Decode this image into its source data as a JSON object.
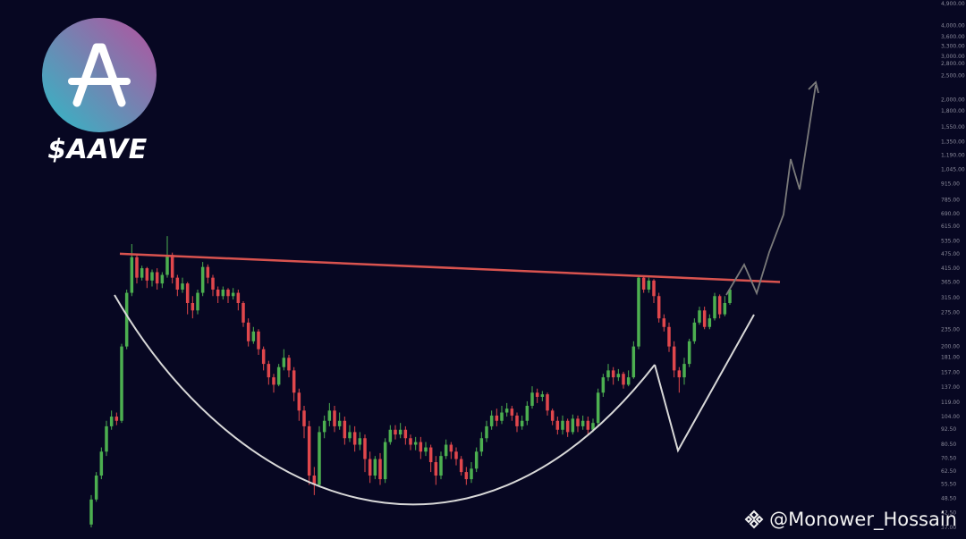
{
  "ticker": "$AAVE",
  "watermark": {
    "handle": "@Monower_Hossain",
    "icon": "binance-diamond-icon"
  },
  "colors": {
    "background": "#070722",
    "bull_candle": "#4caf50",
    "bear_candle": "#e0474c",
    "resistance_line": "#d9534f",
    "cup_curve": "#d8d8d8",
    "projection": "#7a7a7a",
    "logo_gradient_start": "#2ebac6",
    "logo_gradient_end": "#b6509e"
  },
  "chart_data": {
    "type": "candlestick",
    "scale": "log",
    "y_axis_ticks": [
      "4,900.00",
      "4,000.00",
      "3,600.00",
      "3,300.00",
      "3,000.00",
      "2,800.00",
      "2,500.00",
      "2,000.00",
      "1,800.00",
      "1,550.00",
      "1,350.00",
      "1,190.00",
      "1,045.00",
      "915.00",
      "785.00",
      "690.00",
      "615.00",
      "535.00",
      "475.00",
      "415.00",
      "365.00",
      "315.00",
      "275.00",
      "235.00",
      "200.00",
      "181.00",
      "157.00",
      "137.00",
      "119.00",
      "104.00",
      "92.50",
      "80.50",
      "70.50",
      "62.50",
      "55.50",
      "48.50",
      "42.50",
      "37.00"
    ],
    "resistance": {
      "start": 475,
      "end": 365
    },
    "annotations": [
      "cup",
      "handle",
      "breakout projection"
    ],
    "candles": [
      {
        "o": 38,
        "c": 48,
        "h": 50,
        "l": 37
      },
      {
        "o": 48,
        "c": 60,
        "h": 62,
        "l": 47
      },
      {
        "o": 60,
        "c": 75,
        "h": 78,
        "l": 58
      },
      {
        "o": 75,
        "c": 95,
        "h": 100,
        "l": 72
      },
      {
        "o": 95,
        "c": 104,
        "h": 110,
        "l": 92
      },
      {
        "o": 104,
        "c": 100,
        "h": 108,
        "l": 96
      },
      {
        "o": 100,
        "c": 200,
        "h": 205,
        "l": 98
      },
      {
        "o": 200,
        "c": 330,
        "h": 340,
        "l": 195
      },
      {
        "o": 330,
        "c": 460,
        "h": 520,
        "l": 320
      },
      {
        "o": 460,
        "c": 380,
        "h": 470,
        "l": 360
      },
      {
        "o": 380,
        "c": 415,
        "h": 425,
        "l": 370
      },
      {
        "o": 415,
        "c": 370,
        "h": 420,
        "l": 345
      },
      {
        "o": 370,
        "c": 400,
        "h": 410,
        "l": 350
      },
      {
        "o": 400,
        "c": 360,
        "h": 415,
        "l": 340
      },
      {
        "o": 360,
        "c": 390,
        "h": 400,
        "l": 345
      },
      {
        "o": 390,
        "c": 470,
        "h": 560,
        "l": 380
      },
      {
        "o": 470,
        "c": 380,
        "h": 480,
        "l": 360
      },
      {
        "o": 380,
        "c": 340,
        "h": 390,
        "l": 320
      },
      {
        "o": 340,
        "c": 360,
        "h": 380,
        "l": 330
      },
      {
        "o": 360,
        "c": 300,
        "h": 365,
        "l": 270
      },
      {
        "o": 300,
        "c": 280,
        "h": 320,
        "l": 260
      },
      {
        "o": 280,
        "c": 330,
        "h": 340,
        "l": 270
      },
      {
        "o": 330,
        "c": 420,
        "h": 440,
        "l": 320
      },
      {
        "o": 420,
        "c": 380,
        "h": 430,
        "l": 360
      },
      {
        "o": 380,
        "c": 340,
        "h": 390,
        "l": 320
      },
      {
        "o": 340,
        "c": 320,
        "h": 350,
        "l": 300
      },
      {
        "o": 320,
        "c": 340,
        "h": 350,
        "l": 310
      },
      {
        "o": 340,
        "c": 320,
        "h": 345,
        "l": 300
      },
      {
        "o": 320,
        "c": 330,
        "h": 345,
        "l": 310
      },
      {
        "o": 330,
        "c": 300,
        "h": 340,
        "l": 280
      },
      {
        "o": 300,
        "c": 250,
        "h": 305,
        "l": 240
      },
      {
        "o": 250,
        "c": 210,
        "h": 260,
        "l": 200
      },
      {
        "o": 210,
        "c": 230,
        "h": 240,
        "l": 205
      },
      {
        "o": 230,
        "c": 195,
        "h": 235,
        "l": 185
      },
      {
        "o": 195,
        "c": 170,
        "h": 200,
        "l": 160
      },
      {
        "o": 170,
        "c": 150,
        "h": 175,
        "l": 140
      },
      {
        "o": 150,
        "c": 140,
        "h": 155,
        "l": 130
      },
      {
        "o": 140,
        "c": 165,
        "h": 170,
        "l": 138
      },
      {
        "o": 165,
        "c": 180,
        "h": 195,
        "l": 160
      },
      {
        "o": 180,
        "c": 160,
        "h": 185,
        "l": 150
      },
      {
        "o": 160,
        "c": 130,
        "h": 165,
        "l": 120
      },
      {
        "o": 130,
        "c": 110,
        "h": 135,
        "l": 100
      },
      {
        "o": 110,
        "c": 95,
        "h": 115,
        "l": 85
      },
      {
        "o": 95,
        "c": 60,
        "h": 100,
        "l": 55
      },
      {
        "o": 60,
        "c": 55,
        "h": 65,
        "l": 50
      },
      {
        "o": 55,
        "c": 90,
        "h": 95,
        "l": 54
      },
      {
        "o": 90,
        "c": 100,
        "h": 105,
        "l": 85
      },
      {
        "o": 100,
        "c": 110,
        "h": 118,
        "l": 95
      },
      {
        "o": 110,
        "c": 95,
        "h": 115,
        "l": 90
      },
      {
        "o": 95,
        "c": 100,
        "h": 108,
        "l": 92
      },
      {
        "o": 100,
        "c": 85,
        "h": 104,
        "l": 80
      },
      {
        "o": 85,
        "c": 90,
        "h": 96,
        "l": 82
      },
      {
        "o": 90,
        "c": 80,
        "h": 95,
        "l": 75
      },
      {
        "o": 80,
        "c": 85,
        "h": 90,
        "l": 76
      },
      {
        "o": 85,
        "c": 70,
        "h": 88,
        "l": 62
      },
      {
        "o": 70,
        "c": 60,
        "h": 75,
        "l": 56
      },
      {
        "o": 60,
        "c": 70,
        "h": 72,
        "l": 58
      },
      {
        "o": 70,
        "c": 58,
        "h": 74,
        "l": 55
      },
      {
        "o": 58,
        "c": 82,
        "h": 85,
        "l": 56
      },
      {
        "o": 82,
        "c": 92,
        "h": 96,
        "l": 80
      },
      {
        "o": 92,
        "c": 88,
        "h": 96,
        "l": 84
      },
      {
        "o": 88,
        "c": 92,
        "h": 98,
        "l": 85
      },
      {
        "o": 92,
        "c": 85,
        "h": 95,
        "l": 80
      },
      {
        "o": 85,
        "c": 80,
        "h": 88,
        "l": 76
      },
      {
        "o": 80,
        "c": 82,
        "h": 86,
        "l": 76
      },
      {
        "o": 82,
        "c": 75,
        "h": 86,
        "l": 70
      },
      {
        "o": 75,
        "c": 78,
        "h": 82,
        "l": 72
      },
      {
        "o": 78,
        "c": 68,
        "h": 80,
        "l": 62
      },
      {
        "o": 68,
        "c": 60,
        "h": 72,
        "l": 55
      },
      {
        "o": 60,
        "c": 72,
        "h": 75,
        "l": 58
      },
      {
        "o": 72,
        "c": 80,
        "h": 84,
        "l": 70
      },
      {
        "o": 80,
        "c": 75,
        "h": 82,
        "l": 70
      },
      {
        "o": 75,
        "c": 70,
        "h": 78,
        "l": 66
      },
      {
        "o": 70,
        "c": 62,
        "h": 72,
        "l": 60
      },
      {
        "o": 62,
        "c": 58,
        "h": 65,
        "l": 55
      },
      {
        "o": 58,
        "c": 64,
        "h": 68,
        "l": 56
      },
      {
        "o": 64,
        "c": 75,
        "h": 78,
        "l": 62
      },
      {
        "o": 75,
        "c": 85,
        "h": 90,
        "l": 72
      },
      {
        "o": 85,
        "c": 95,
        "h": 100,
        "l": 82
      },
      {
        "o": 95,
        "c": 105,
        "h": 110,
        "l": 92
      },
      {
        "o": 105,
        "c": 100,
        "h": 112,
        "l": 95
      },
      {
        "o": 100,
        "c": 108,
        "h": 115,
        "l": 97
      },
      {
        "o": 108,
        "c": 112,
        "h": 118,
        "l": 104
      },
      {
        "o": 112,
        "c": 105,
        "h": 115,
        "l": 100
      },
      {
        "o": 105,
        "c": 95,
        "h": 108,
        "l": 90
      },
      {
        "o": 95,
        "c": 100,
        "h": 105,
        "l": 92
      },
      {
        "o": 100,
        "c": 115,
        "h": 120,
        "l": 96
      },
      {
        "o": 115,
        "c": 130,
        "h": 138,
        "l": 112
      },
      {
        "o": 130,
        "c": 125,
        "h": 135,
        "l": 118
      },
      {
        "o": 125,
        "c": 128,
        "h": 132,
        "l": 120
      },
      {
        "o": 128,
        "c": 110,
        "h": 130,
        "l": 105
      },
      {
        "o": 110,
        "c": 100,
        "h": 112,
        "l": 96
      },
      {
        "o": 100,
        "c": 92,
        "h": 104,
        "l": 88
      },
      {
        "o": 92,
        "c": 100,
        "h": 105,
        "l": 88
      },
      {
        "o": 100,
        "c": 90,
        "h": 102,
        "l": 86
      },
      {
        "o": 90,
        "c": 102,
        "h": 106,
        "l": 88
      },
      {
        "o": 102,
        "c": 95,
        "h": 105,
        "l": 90
      },
      {
        "o": 95,
        "c": 100,
        "h": 105,
        "l": 92
      },
      {
        "o": 100,
        "c": 92,
        "h": 104,
        "l": 88
      },
      {
        "o": 92,
        "c": 98,
        "h": 102,
        "l": 90
      },
      {
        "o": 98,
        "c": 130,
        "h": 135,
        "l": 96
      },
      {
        "o": 130,
        "c": 150,
        "h": 155,
        "l": 125
      },
      {
        "o": 150,
        "c": 160,
        "h": 170,
        "l": 145
      },
      {
        "o": 160,
        "c": 150,
        "h": 165,
        "l": 140
      },
      {
        "o": 150,
        "c": 155,
        "h": 162,
        "l": 145
      },
      {
        "o": 155,
        "c": 140,
        "h": 158,
        "l": 135
      },
      {
        "o": 140,
        "c": 150,
        "h": 160,
        "l": 138
      },
      {
        "o": 150,
        "c": 200,
        "h": 210,
        "l": 148
      },
      {
        "o": 200,
        "c": 380,
        "h": 390,
        "l": 195
      },
      {
        "o": 380,
        "c": 340,
        "h": 385,
        "l": 330
      },
      {
        "o": 340,
        "c": 370,
        "h": 380,
        "l": 330
      },
      {
        "o": 370,
        "c": 320,
        "h": 375,
        "l": 300
      },
      {
        "o": 320,
        "c": 260,
        "h": 330,
        "l": 250
      },
      {
        "o": 260,
        "c": 240,
        "h": 270,
        "l": 230
      },
      {
        "o": 240,
        "c": 200,
        "h": 250,
        "l": 190
      },
      {
        "o": 200,
        "c": 160,
        "h": 210,
        "l": 150
      },
      {
        "o": 160,
        "c": 150,
        "h": 165,
        "l": 130
      },
      {
        "o": 150,
        "c": 170,
        "h": 180,
        "l": 140
      },
      {
        "o": 170,
        "c": 210,
        "h": 215,
        "l": 165
      },
      {
        "o": 210,
        "c": 250,
        "h": 260,
        "l": 205
      },
      {
        "o": 250,
        "c": 280,
        "h": 290,
        "l": 245
      },
      {
        "o": 280,
        "c": 240,
        "h": 290,
        "l": 235
      },
      {
        "o": 240,
        "c": 260,
        "h": 270,
        "l": 235
      },
      {
        "o": 260,
        "c": 320,
        "h": 330,
        "l": 255
      },
      {
        "o": 320,
        "c": 270,
        "h": 325,
        "l": 260
      },
      {
        "o": 270,
        "c": 300,
        "h": 320,
        "l": 265
      },
      {
        "o": 300,
        "c": 340,
        "h": 345,
        "l": 295
      }
    ]
  }
}
